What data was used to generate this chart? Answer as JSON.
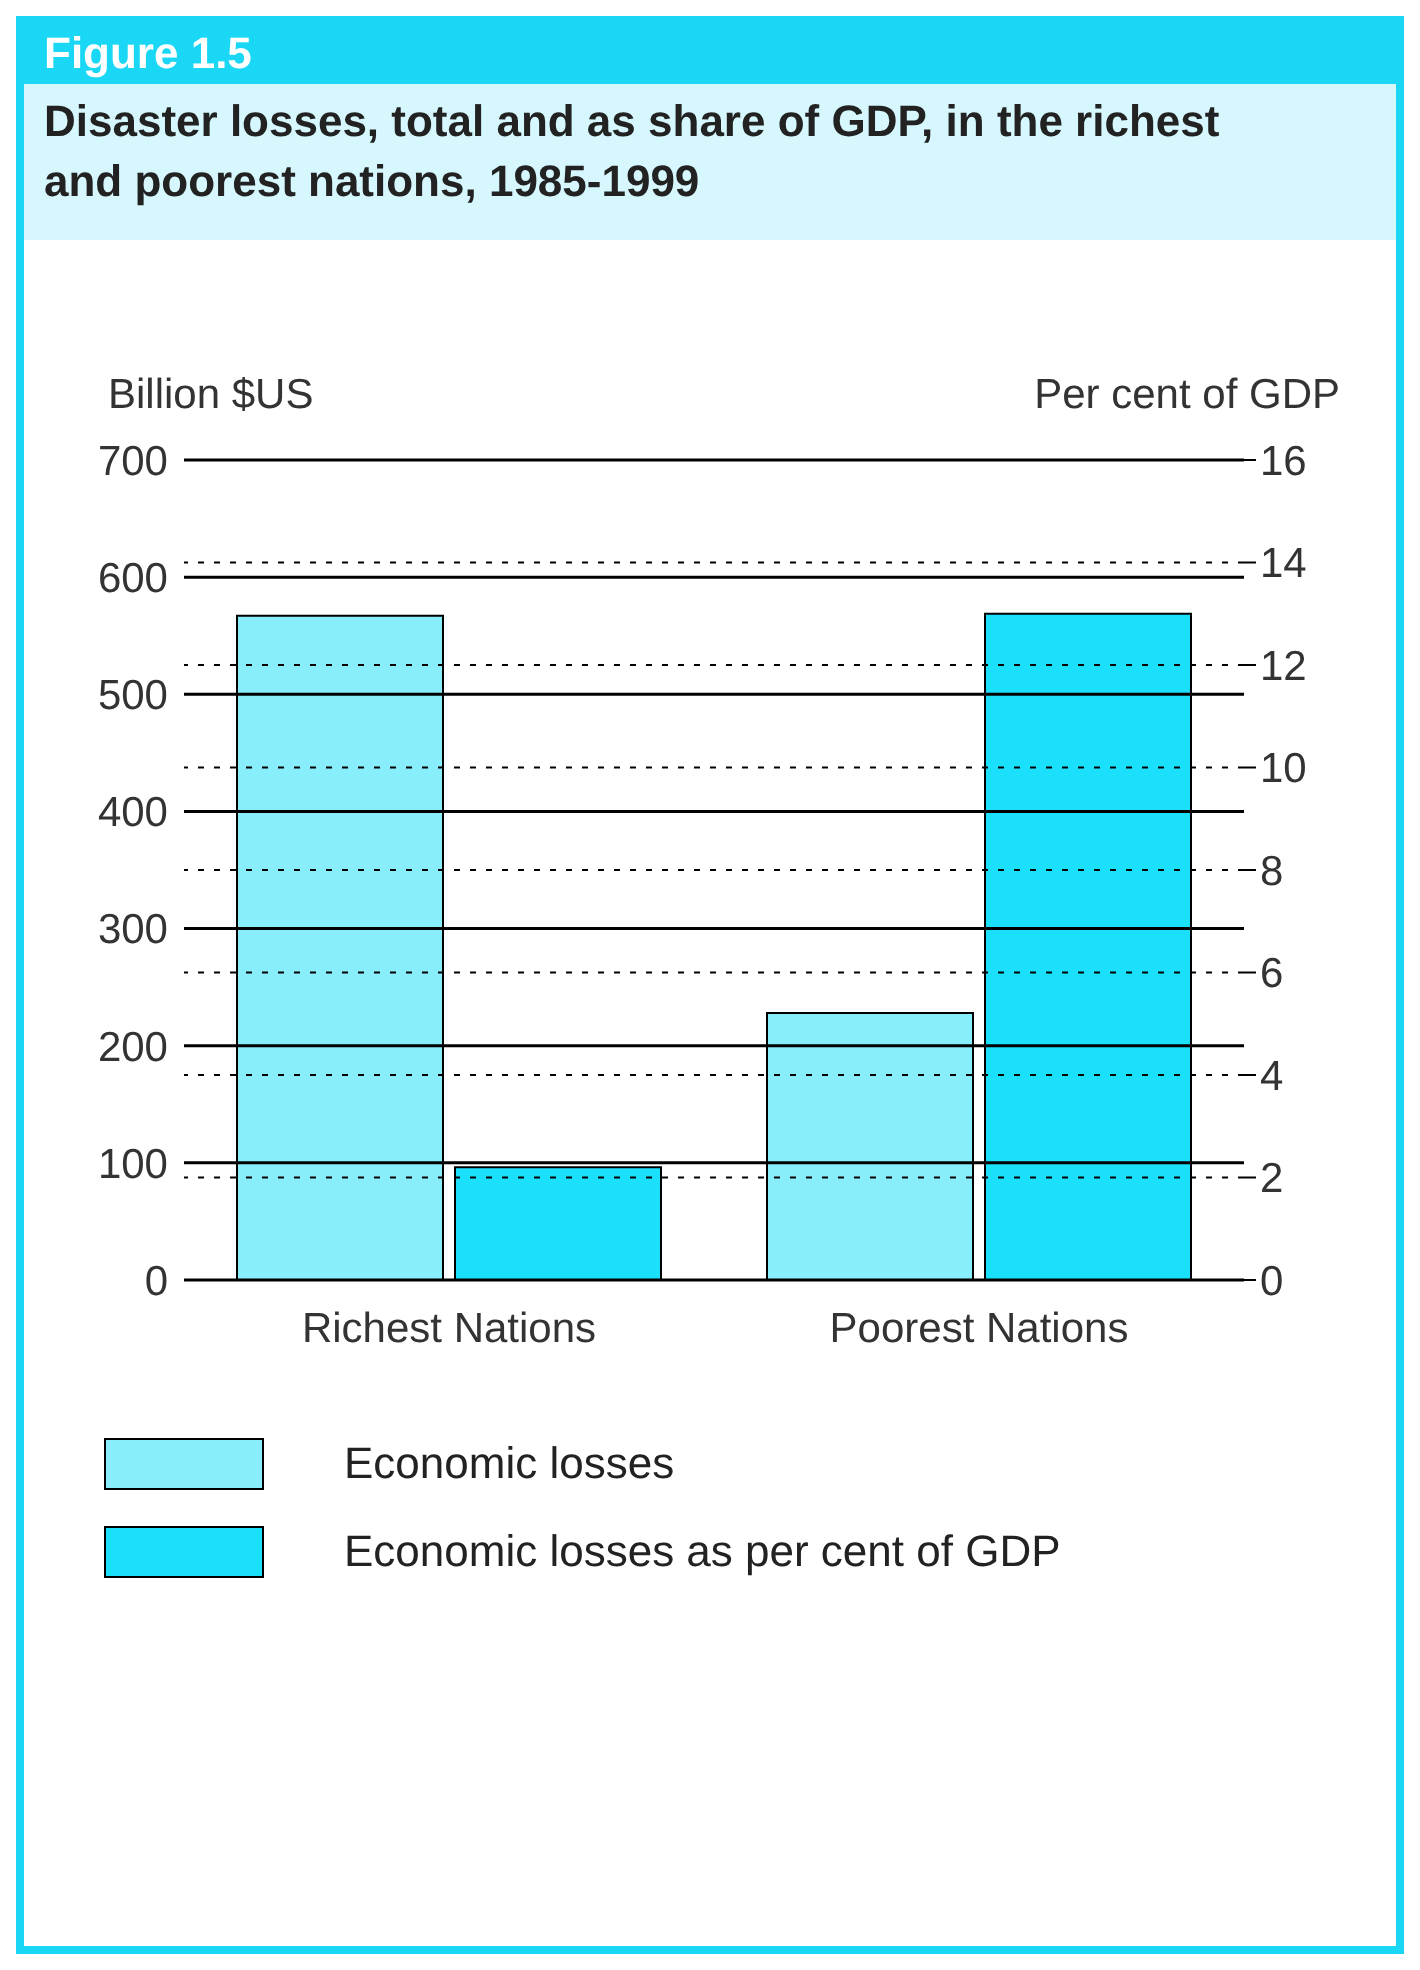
{
  "chart_data": {
    "type": "bar",
    "title": "Figure 1.5",
    "subtitle": "Disaster losses, total and as share of GDP, in the richest and poorest nations, 1985-1999",
    "xlabel": null,
    "ylabel": "Billion $US",
    "y2label": "Per cent of GDP",
    "categories": [
      "Richest Nations",
      "Poorest Nations"
    ],
    "series": [
      {
        "name": "Economic losses",
        "color": "#88eefc",
        "values": [
          567,
          228
        ]
      },
      {
        "name": "Economic losses as per cent of GDP",
        "color": "#1ae0fc",
        "values": [
          2.2,
          13.0
        ],
        "axis": "y2"
      }
    ],
    "ylim": [
      0,
      700
    ],
    "yticks": [
      0,
      100,
      200,
      300,
      400,
      500,
      600,
      700
    ],
    "y2lim": [
      0,
      16
    ],
    "y2ticks": [
      0,
      2,
      4,
      6,
      8,
      10,
      12,
      14,
      16
    ],
    "grid": "y",
    "legend": "bottom"
  }
}
